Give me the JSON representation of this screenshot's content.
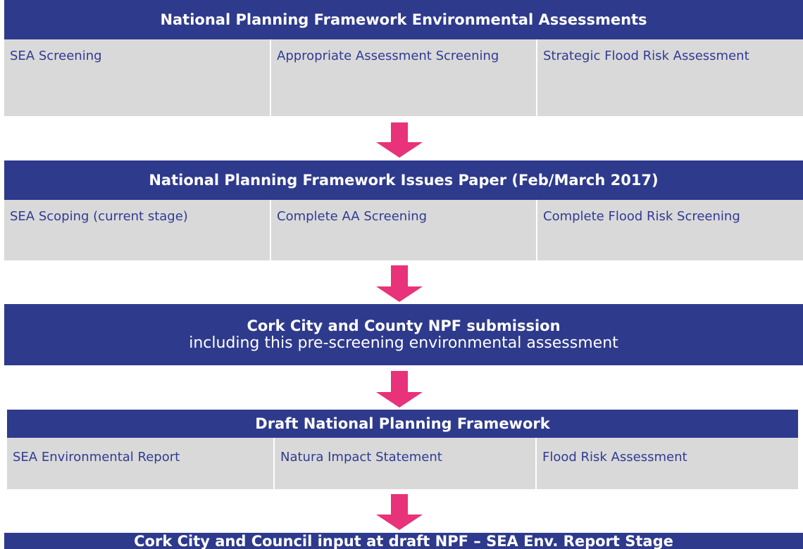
{
  "blocks": [
    {
      "title": "National Planning Framework Environmental Assessments",
      "cells": [
        "SEA Screening",
        "Appropriate Assessment Screening",
        "Strategic Flood Risk Assessment"
      ]
    },
    {
      "title": "National Planning Framework Issues Paper (Feb/March 2017)",
      "cells": [
        "SEA Scoping (current stage)",
        "Complete AA Screening",
        "Complete Flood Risk Screening"
      ]
    },
    {
      "title": "Cork City and County NPF submission",
      "subtitle": "including this pre-screening environmental assessment"
    },
    {
      "title": "Draft National Planning Framework",
      "cells": [
        "SEA Environmental Report",
        "Natura Impact Statement",
        "Flood Risk Assessment"
      ]
    },
    {
      "title": "Cork City and Council input at draft NPF – SEA Env. Report Stage"
    }
  ]
}
